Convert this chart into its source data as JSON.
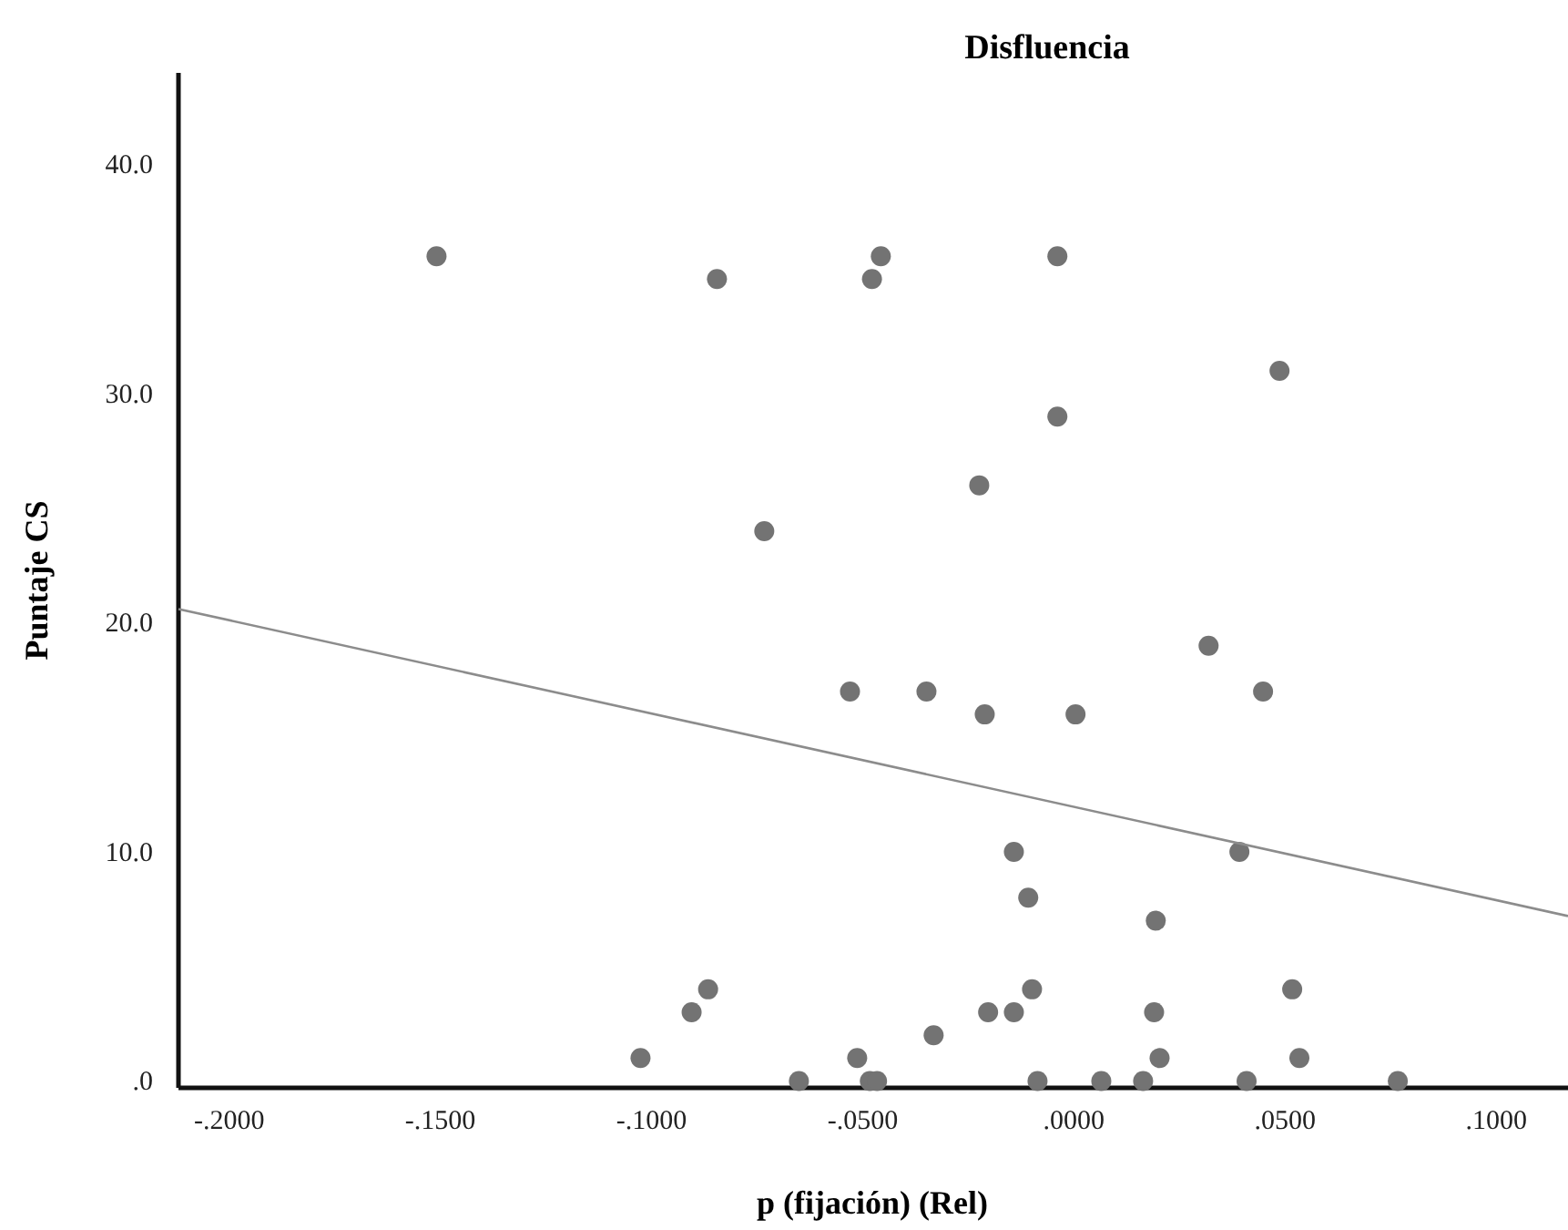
{
  "chart_data": {
    "type": "scatter",
    "title": "Disfluencia",
    "xlabel": "p (fijación) (Rel)",
    "ylabel": "Puntaje CS",
    "xlim": [
      -0.212,
      0.117
    ],
    "ylim": [
      -0.3,
      44
    ],
    "xticks": [
      {
        "value": -0.2,
        "label": "-.2000"
      },
      {
        "value": -0.15,
        "label": "-.1500"
      },
      {
        "value": -0.1,
        "label": "-.1000"
      },
      {
        "value": -0.05,
        "label": "-.0500"
      },
      {
        "value": 0,
        "label": ".0000"
      },
      {
        "value": 0.05,
        "label": ".0500"
      },
      {
        "value": 0.1,
        "label": ".1000"
      }
    ],
    "yticks": [
      {
        "value": 0,
        "label": ".0"
      },
      {
        "value": 10,
        "label": "10.0"
      },
      {
        "value": 20,
        "label": "20.0"
      },
      {
        "value": 30,
        "label": "30.0"
      },
      {
        "value": 40,
        "label": "40.0"
      }
    ],
    "grid": false,
    "series": [
      {
        "marker": "circle",
        "color": "#737373",
        "x": [
          -0.1509,
          -0.0478,
          -0.0457,
          -0.0845,
          -0.0039,
          -0.0039,
          0.0487,
          -0.0224,
          -0.0733,
          0.0319,
          -0.053,
          -0.0349,
          0.0448,
          -0.0211,
          0.0004,
          -0.0142,
          0.0392,
          -0.0108,
          0.0194,
          -0.0099,
          -0.0866,
          0.0517,
          -0.0905,
          -0.0203,
          -0.0142,
          0.019,
          -0.0332,
          -0.1026,
          -0.0513,
          0.0203,
          0.0534,
          -0.0651,
          -0.0483,
          -0.0466,
          -0.0086,
          0.0065,
          0.0164,
          0.0409,
          0.0767
        ],
        "values": [
          36,
          35,
          36,
          35,
          36,
          29,
          31,
          26,
          24,
          19,
          17,
          17,
          17,
          16,
          16,
          10,
          10,
          8,
          7,
          4,
          4,
          4,
          3,
          3,
          3,
          3,
          2,
          1,
          1,
          1,
          1,
          0,
          0,
          0,
          0,
          0,
          0,
          0,
          0
        ]
      },
      {
        "type": "line",
        "color": "#8c8c8c",
        "x": [
          -0.212,
          0.117
        ],
        "values": [
          20.6,
          7.2
        ]
      }
    ]
  }
}
